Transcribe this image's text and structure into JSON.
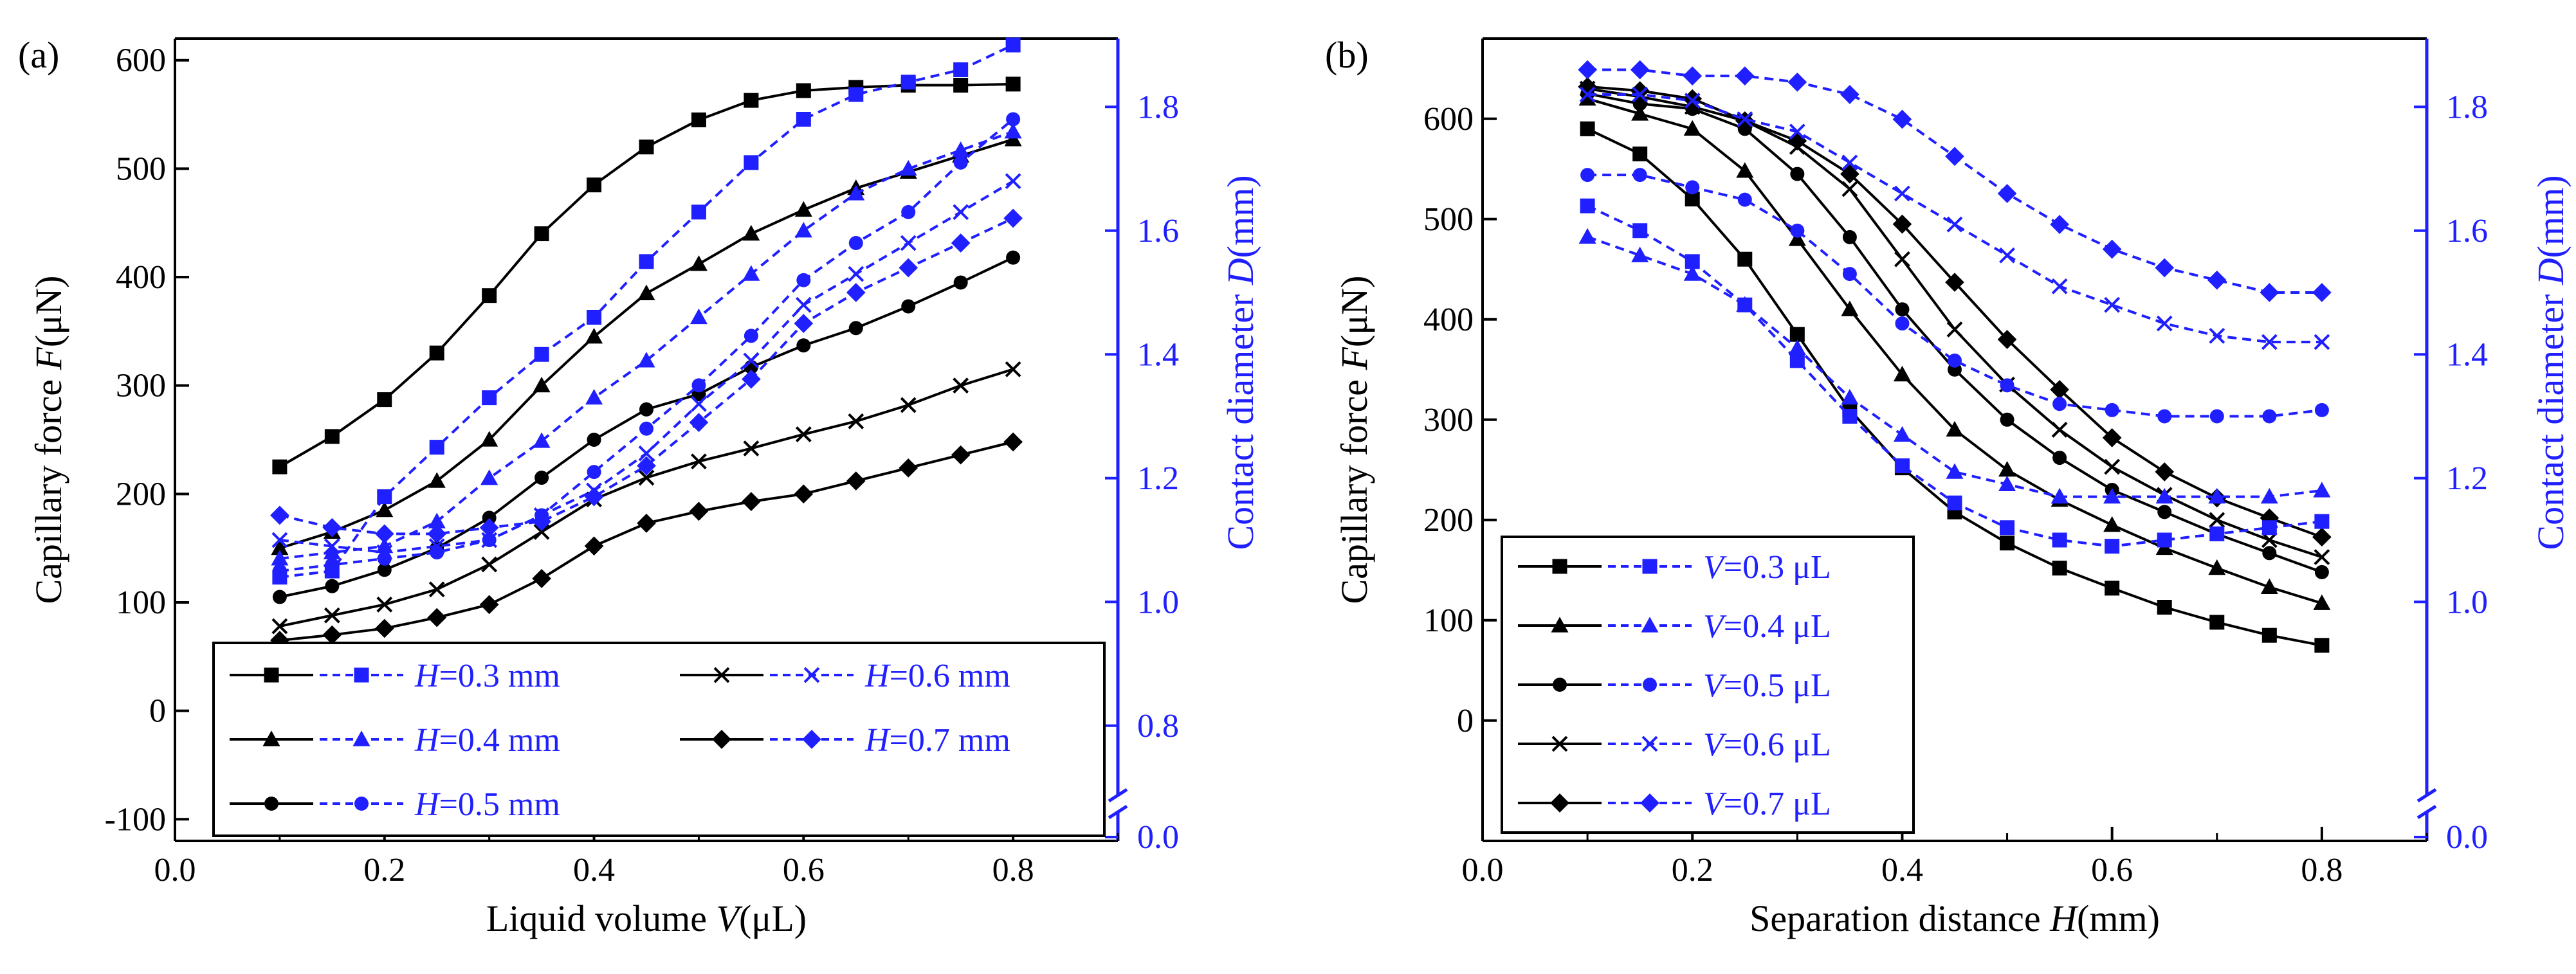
{
  "figure": {
    "description": "Two-panel chart: capillary force and contact diameter"
  },
  "chart_data": [
    {
      "panel_label": "(a)",
      "type": "line",
      "xlabel": "Liquid volume V(μL)",
      "ylabel_left": "Capillary force F(μN)",
      "ylabel_right": "Contact diameter D(mm)",
      "xlim": [
        0.0,
        0.9
      ],
      "ylim_left": [
        -120,
        620
      ],
      "ylim_right": [
        0.0,
        1.9
      ],
      "x_ticks": [
        "0.0",
        "0.2",
        "0.4",
        "0.6",
        "0.8"
      ],
      "y_ticks_left": [
        "-100",
        "0",
        "100",
        "200",
        "300",
        "400",
        "500",
        "600"
      ],
      "y_ticks_right": [
        "0.0",
        "0.8",
        "1.0",
        "1.2",
        "1.4",
        "1.6",
        "1.8"
      ],
      "x": [
        0.1,
        0.15,
        0.2,
        0.25,
        0.3,
        0.35,
        0.4,
        0.45,
        0.5,
        0.55,
        0.6,
        0.65,
        0.7,
        0.75,
        0.8
      ],
      "legend": [
        {
          "label": "H=0.3 mm",
          "marker": "square"
        },
        {
          "label": "H=0.4 mm",
          "marker": "triangle"
        },
        {
          "label": "H=0.5 mm",
          "marker": "circle"
        },
        {
          "label": "H=0.6 mm",
          "marker": "x"
        },
        {
          "label": "H=0.7 mm",
          "marker": "diamond"
        }
      ],
      "series_force": [
        {
          "name": "H=0.3 mm",
          "marker": "square",
          "values": [
            225,
            253,
            287,
            330,
            383,
            440,
            485,
            520,
            545,
            563,
            572,
            575,
            577,
            577,
            578
          ]
        },
        {
          "name": "H=0.4 mm",
          "marker": "triangle",
          "values": [
            150,
            165,
            185,
            212,
            250,
            300,
            345,
            385,
            412,
            440,
            462,
            482,
            497,
            512,
            527
          ]
        },
        {
          "name": "H=0.5 mm",
          "marker": "circle",
          "values": [
            105,
            115,
            130,
            150,
            178,
            215,
            250,
            278,
            292,
            317,
            337,
            353,
            373,
            395,
            418
          ]
        },
        {
          "name": "H=0.6 mm",
          "marker": "x",
          "values": [
            78,
            88,
            98,
            112,
            135,
            165,
            195,
            215,
            230,
            242,
            255,
            267,
            282,
            300,
            315
          ]
        },
        {
          "name": "H=0.7 mm",
          "marker": "diamond",
          "values": [
            65,
            70,
            76,
            86,
            98,
            122,
            152,
            173,
            184,
            193,
            200,
            212,
            224,
            236,
            248
          ]
        }
      ],
      "series_diameter": [
        {
          "name": "H=0.3 mm",
          "marker": "square",
          "values": [
            1.04,
            1.05,
            1.17,
            1.25,
            1.33,
            1.4,
            1.46,
            1.55,
            1.63,
            1.71,
            1.78,
            1.82,
            1.84,
            1.86,
            1.9
          ]
        },
        {
          "name": "H=0.4 mm",
          "marker": "triangle",
          "values": [
            1.07,
            1.08,
            1.09,
            1.13,
            1.2,
            1.26,
            1.33,
            1.39,
            1.46,
            1.53,
            1.6,
            1.66,
            1.7,
            1.73,
            1.76
          ]
        },
        {
          "name": "H=0.5 mm",
          "marker": "circle",
          "values": [
            1.05,
            1.06,
            1.07,
            1.08,
            1.1,
            1.14,
            1.21,
            1.28,
            1.35,
            1.43,
            1.52,
            1.58,
            1.63,
            1.71,
            1.78
          ]
        },
        {
          "name": "H=0.6 mm",
          "marker": "x",
          "values": [
            1.1,
            1.09,
            1.08,
            1.09,
            1.1,
            1.14,
            1.18,
            1.24,
            1.32,
            1.39,
            1.48,
            1.53,
            1.58,
            1.63,
            1.68
          ]
        },
        {
          "name": "H=0.7 mm",
          "marker": "diamond",
          "values": [
            1.14,
            1.12,
            1.11,
            1.11,
            1.12,
            1.13,
            1.17,
            1.22,
            1.29,
            1.36,
            1.45,
            1.5,
            1.54,
            1.58,
            1.62
          ]
        }
      ]
    },
    {
      "panel_label": "(b)",
      "type": "line",
      "xlabel": "Separation distance H(mm)",
      "ylabel_left": "Capillary force F(μN)",
      "ylabel_right": "Contact diameter D(mm)",
      "xlim": [
        0.0,
        0.9
      ],
      "ylim_left": [
        -120,
        680
      ],
      "ylim_right": [
        0.0,
        1.9
      ],
      "x_ticks": [
        "0.0",
        "0.2",
        "0.4",
        "0.6",
        "0.8"
      ],
      "y_ticks_left": [
        "0",
        "100",
        "200",
        "300",
        "400",
        "500",
        "600"
      ],
      "y_ticks_right": [
        "0.0",
        "1.0",
        "1.2",
        "1.4",
        "1.6",
        "1.8"
      ],
      "x": [
        0.1,
        0.15,
        0.2,
        0.25,
        0.3,
        0.35,
        0.4,
        0.45,
        0.5,
        0.55,
        0.6,
        0.65,
        0.7,
        0.75,
        0.8
      ],
      "legend": [
        {
          "label": "V=0.3 μL",
          "marker": "square"
        },
        {
          "label": "V=0.4 μL",
          "marker": "triangle"
        },
        {
          "label": "V=0.5 μL",
          "marker": "circle"
        },
        {
          "label": "V=0.6 μL",
          "marker": "x"
        },
        {
          "label": "V=0.7 μL",
          "marker": "diamond"
        }
      ],
      "series_force": [
        {
          "name": "V=0.3 μL",
          "marker": "square",
          "values": [
            590,
            565,
            520,
            460,
            385,
            310,
            252,
            208,
            177,
            152,
            132,
            113,
            98,
            85,
            75
          ]
        },
        {
          "name": "V=0.4 μL",
          "marker": "triangle",
          "values": [
            620,
            605,
            590,
            548,
            480,
            410,
            345,
            290,
            250,
            220,
            195,
            172,
            152,
            133,
            117
          ]
        },
        {
          "name": "V=0.5 μL",
          "marker": "circle",
          "values": [
            625,
            615,
            610,
            590,
            545,
            482,
            410,
            350,
            300,
            262,
            230,
            208,
            186,
            167,
            148
          ]
        },
        {
          "name": "V=0.6 μL",
          "marker": "x",
          "values": [
            630,
            622,
            612,
            598,
            572,
            530,
            460,
            390,
            335,
            290,
            253,
            225,
            200,
            180,
            163
          ]
        },
        {
          "name": "V=0.7 μL",
          "marker": "diamond",
          "values": [
            632,
            628,
            620,
            598,
            578,
            545,
            495,
            437,
            380,
            330,
            282,
            248,
            222,
            202,
            183
          ]
        }
      ],
      "series_diameter": [
        {
          "name": "V=0.3 μL",
          "marker": "square",
          "values": [
            1.64,
            1.6,
            1.55,
            1.48,
            1.39,
            1.3,
            1.22,
            1.16,
            1.12,
            1.1,
            1.09,
            1.1,
            1.11,
            1.12,
            1.13
          ]
        },
        {
          "name": "V=0.4 μL",
          "marker": "triangle",
          "values": [
            1.59,
            1.56,
            1.53,
            1.48,
            1.41,
            1.33,
            1.27,
            1.21,
            1.19,
            1.17,
            1.17,
            1.17,
            1.17,
            1.17,
            1.18
          ]
        },
        {
          "name": "V=0.5 μL",
          "marker": "circle",
          "values": [
            1.69,
            1.69,
            1.67,
            1.65,
            1.6,
            1.53,
            1.45,
            1.39,
            1.35,
            1.32,
            1.31,
            1.3,
            1.3,
            1.3,
            1.31
          ]
        },
        {
          "name": "V=0.6 μL",
          "marker": "x",
          "values": [
            1.82,
            1.82,
            1.81,
            1.78,
            1.76,
            1.71,
            1.66,
            1.61,
            1.56,
            1.51,
            1.48,
            1.45,
            1.43,
            1.42,
            1.42
          ]
        },
        {
          "name": "V=0.7 μL",
          "marker": "diamond",
          "values": [
            1.86,
            1.86,
            1.85,
            1.85,
            1.84,
            1.82,
            1.78,
            1.72,
            1.66,
            1.61,
            1.57,
            1.54,
            1.52,
            1.5,
            1.5
          ]
        }
      ]
    }
  ]
}
